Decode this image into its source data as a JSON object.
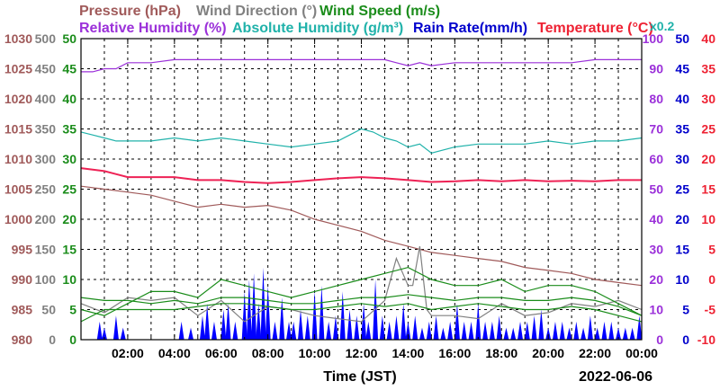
{
  "header": {
    "row1": [
      {
        "text": "Pressure (hPa)",
        "color": "#a05a5a"
      },
      {
        "text": "Wind Direction (°)",
        "color": "#808080"
      },
      {
        "text": "Wind Speed (m/s)",
        "color": "#1a8c1a"
      }
    ],
    "row2": [
      {
        "text": "Relative Humidity (%)",
        "color": "#9b30d9"
      },
      {
        "text": "Absolute Humidity (g/m³)",
        "color": "#20b2aa"
      },
      {
        "text": "Rain Rate(mm/h)",
        "color": "#0000cc"
      },
      {
        "text": "Temperature (°C)",
        "color": "#ee2233"
      }
    ],
    "scale_note": "x0.2"
  },
  "footer": {
    "xlabel": "Time (JST)",
    "date": "2022-06-06"
  },
  "colors": {
    "pressure": "#a05a5a",
    "wind_direction": "#808080",
    "wind_speed": "#1a8c1a",
    "relative_humidity": "#9b30d9",
    "absolute_humidity": "#20b2aa",
    "rain_rate": "#0000ff",
    "temperature": "#ee2255",
    "grid": "#000000"
  },
  "chart_data": {
    "type": "line",
    "title": "",
    "xlabel": "Time (JST)",
    "x_ticks": [
      "02:00",
      "04:00",
      "06:00",
      "08:00",
      "10:00",
      "12:00",
      "14:00",
      "16:00",
      "18:00",
      "20:00",
      "22:00",
      "00:00"
    ],
    "x_range_hours": [
      0,
      24
    ],
    "grid": true,
    "axes": [
      {
        "name": "Pressure (hPa)",
        "side": "left",
        "range": [
          980,
          1030
        ],
        "ticks": [
          "980",
          "985",
          "990",
          "995",
          "1000",
          "1005",
          "1010",
          "1015",
          "1020",
          "1025",
          "1030"
        ],
        "color": "#a05a5a"
      },
      {
        "name": "Wind Direction (°)",
        "side": "left",
        "range": [
          0,
          500
        ],
        "ticks": [
          "0",
          "50",
          "100",
          "150",
          "200",
          "250",
          "300",
          "350",
          "400",
          "450",
          "500"
        ],
        "color": "#808080"
      },
      {
        "name": "Wind Speed (m/s)",
        "side": "left",
        "range": [
          0,
          50
        ],
        "ticks": [
          "0",
          "5",
          "10",
          "15",
          "20",
          "25",
          "30",
          "35",
          "40",
          "45",
          "50"
        ],
        "color": "#1a8c1a"
      },
      {
        "name": "Relative Humidity (%)",
        "side": "right",
        "range": [
          0,
          100
        ],
        "ticks": [
          "0",
          "10",
          "20",
          "30",
          "40",
          "50",
          "60",
          "70",
          "80",
          "90",
          "100"
        ],
        "color": "#9b30d9"
      },
      {
        "name": "Rain Rate(mm/h)",
        "side": "right",
        "range": [
          0,
          50
        ],
        "ticks": [
          "0",
          "5",
          "10",
          "15",
          "20",
          "25",
          "30",
          "35",
          "40",
          "45",
          "50"
        ],
        "color": "#0000cc"
      },
      {
        "name": "Temperature (°C)",
        "side": "right",
        "range": [
          -10,
          40
        ],
        "ticks": [
          "-10",
          "-5",
          "0",
          "5",
          "10",
          "15",
          "20",
          "25",
          "30",
          "35",
          "40"
        ],
        "color": "#ee2233"
      }
    ],
    "series": [
      {
        "name": "Relative Humidity (%)",
        "axis": 3,
        "x": [
          0,
          0.5,
          1,
          1.5,
          2,
          3,
          4,
          5,
          6,
          7,
          8,
          9,
          10,
          11,
          12,
          12.5,
          13,
          13.5,
          14,
          14.5,
          15,
          16,
          17,
          18,
          19,
          20,
          21,
          22,
          23,
          24
        ],
        "y": [
          89,
          89,
          90,
          90,
          92,
          92,
          93,
          93,
          93,
          93,
          93,
          93,
          93,
          93,
          93,
          93,
          93,
          92,
          91,
          92,
          91,
          92,
          92,
          92,
          92,
          92,
          92,
          93,
          93,
          93
        ]
      },
      {
        "name": "Absolute Humidity (g/m³)",
        "axis": 3,
        "x": [
          0,
          0.5,
          1,
          1.5,
          2,
          3,
          4,
          5,
          6,
          7,
          8,
          9,
          10,
          11,
          11.5,
          12,
          12.5,
          13,
          13.5,
          14,
          14.5,
          15,
          16,
          17,
          18,
          19,
          20,
          21,
          22,
          23,
          24
        ],
        "y": [
          69,
          68,
          67,
          66,
          66,
          66,
          67,
          66,
          67,
          66,
          65,
          64,
          65,
          66,
          68,
          70,
          69,
          67,
          66,
          64,
          65,
          62,
          64,
          65,
          65,
          65,
          66,
          65,
          66,
          66,
          67
        ]
      },
      {
        "name": "Temperature (°C)",
        "axis": 5,
        "x": [
          0,
          1,
          2,
          3,
          4,
          5,
          6,
          7,
          8,
          9,
          10,
          11,
          12,
          13,
          14,
          15,
          16,
          17,
          18,
          19,
          20,
          21,
          22,
          23,
          24
        ],
        "y": [
          18.5,
          18,
          17,
          17,
          17,
          16.5,
          16.5,
          16.2,
          16,
          16.2,
          16.5,
          16.8,
          17,
          16.8,
          16.5,
          16.2,
          16.3,
          16.5,
          16.3,
          16.5,
          16.3,
          16.4,
          16.3,
          16.5,
          16.5
        ]
      },
      {
        "name": "Pressure (hPa)",
        "axis": 0,
        "x": [
          0,
          1,
          2,
          3,
          4,
          5,
          6,
          7,
          8,
          9,
          10,
          11,
          12,
          13,
          14,
          15,
          16,
          17,
          18,
          19,
          20,
          21,
          22,
          23,
          24
        ],
        "y": [
          1005.5,
          1005,
          1004.5,
          1004,
          1003,
          1002,
          1002.5,
          1002,
          1002.3,
          1001.5,
          1000,
          999,
          998,
          996.5,
          995.5,
          994.5,
          994,
          993.5,
          993,
          992,
          991.5,
          991,
          990,
          989.5,
          989
        ]
      },
      {
        "name": "Wind Direction (°)",
        "axis": 1,
        "x": [
          0,
          1,
          2,
          3,
          4,
          5,
          6,
          7,
          8,
          9,
          10,
          11,
          12,
          13,
          13.5,
          14,
          14.2,
          14.5,
          14.8,
          15,
          16,
          17,
          18,
          19,
          20,
          21,
          22,
          23,
          24
        ],
        "y": [
          60,
          45,
          70,
          65,
          70,
          40,
          65,
          30,
          55,
          50,
          40,
          35,
          30,
          65,
          135,
          90,
          90,
          155,
          50,
          40,
          40,
          35,
          60,
          40,
          45,
          60,
          55,
          65,
          50
        ]
      },
      {
        "name": "Wind Speed (m/s)",
        "axis": 2,
        "x": [
          0,
          1,
          2,
          3,
          4,
          5,
          6,
          7,
          8,
          9,
          10,
          11,
          12,
          13,
          14,
          15,
          16,
          17,
          18,
          19,
          20,
          21,
          22,
          23,
          24
        ],
        "y": [
          3,
          5,
          5,
          5,
          5,
          5.5,
          6,
          6,
          5.5,
          5,
          5,
          5.5,
          6,
          5.5,
          6,
          5,
          5.5,
          6,
          5.5,
          5,
          5,
          5.5,
          5,
          4,
          3
        ]
      },
      {
        "name": "Wind Speed (m/s)",
        "axis": 2,
        "x": [
          0,
          1,
          2,
          3,
          4,
          5,
          6,
          7,
          8,
          9,
          10,
          11,
          12,
          13,
          14,
          15,
          16,
          17,
          18,
          19,
          20,
          21,
          22,
          23,
          24
        ],
        "y": [
          7,
          6.5,
          6.5,
          6,
          6.5,
          6,
          7,
          7,
          6.5,
          6,
          6,
          6.5,
          7,
          7,
          7.5,
          7,
          6.5,
          7,
          7,
          6.5,
          6.5,
          7,
          6.5,
          5.5,
          4
        ]
      },
      {
        "name": "Wind Speed (m/s)",
        "axis": 2,
        "x": [
          0,
          1,
          2,
          3,
          4,
          5,
          6,
          7,
          8,
          9,
          10,
          11,
          12,
          13,
          14,
          15,
          16,
          17,
          18,
          19,
          20,
          21,
          22,
          23,
          24
        ],
        "y": [
          5,
          4,
          6,
          8,
          8,
          7,
          10,
          9,
          8,
          7,
          8,
          9,
          10,
          11,
          12,
          10,
          9,
          9,
          10,
          8,
          9,
          9,
          8,
          6,
          4
        ]
      }
    ],
    "rain_rate": {
      "name": "Rain Rate(mm/h)",
      "axis": 4,
      "x": [
        0.8,
        1.0,
        1.5,
        1.8,
        4.3,
        4.7,
        5.2,
        5.4,
        5.7,
        6.1,
        6.3,
        6.6,
        7.0,
        7.2,
        7.4,
        7.6,
        7.8,
        8.0,
        8.3,
        8.6,
        8.9,
        9.1,
        9.4,
        9.7,
        10.0,
        10.3,
        10.6,
        10.9,
        11.2,
        11.5,
        11.8,
        12.1,
        12.3,
        12.6,
        12.9,
        13.2,
        13.5,
        13.8,
        14.0,
        14.3,
        14.6,
        14.9,
        15.2,
        15.5,
        15.8,
        16.1,
        16.4,
        16.7,
        17.0,
        17.3,
        17.6,
        17.9,
        18.2,
        18.5,
        18.8,
        19.1,
        19.4,
        19.7,
        20.0,
        20.3,
        20.6,
        20.9,
        21.2,
        21.5,
        21.8,
        22.1,
        22.4,
        22.7,
        23.0,
        23.3,
        23.6,
        23.9
      ],
      "y": [
        3,
        2,
        4,
        2,
        3,
        2,
        4,
        6,
        3,
        5,
        6,
        3,
        8,
        10,
        11,
        6,
        12,
        9,
        3,
        7,
        3,
        3,
        5,
        4,
        8,
        9,
        3,
        4,
        8,
        5,
        4,
        6,
        3,
        10,
        4,
        3,
        4,
        6,
        3,
        4,
        2,
        3,
        4,
        2,
        3,
        6,
        3,
        3,
        6,
        3,
        3,
        4,
        2,
        2,
        3,
        3,
        4,
        5,
        2,
        3,
        3,
        2,
        3,
        2,
        4,
        2,
        3,
        3,
        2,
        2,
        2,
        4
      ]
    }
  }
}
